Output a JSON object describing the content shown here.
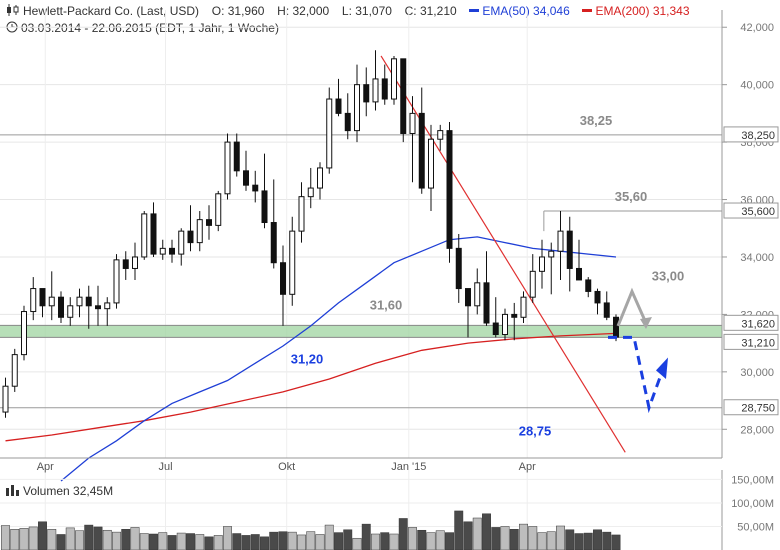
{
  "header": {
    "instrument": "Hewlett-Packard Co. (Last, USD)",
    "open": "O: 31,960",
    "high": "H: 32,000",
    "low": "L: 31,070",
    "close": "C: 31,210",
    "ema50_label": "EMA(50)",
    "ema50_value": "34,046",
    "ema200_label": "EMA(200)",
    "ema200_value": "31,343",
    "period": "03.03.2014 - 22.06.2015 (EDT, 1 Jahr, 1 Woche)"
  },
  "volume": {
    "label": "Volumen",
    "value": "32,45M"
  },
  "colors": {
    "ema50": "#1f3fd6",
    "ema200": "#d62020",
    "trend": "#e03030",
    "zone": "#9fd4a0",
    "forecast": "#1a3fe0",
    "arrow_gray": "#a6a6a6"
  },
  "chart_data": [
    {
      "type": "candlestick",
      "title": "Hewlett-Packard Co. (Last, USD)",
      "x_tick_labels": [
        "Apr",
        "Jul",
        "Okt",
        "Jan '15",
        "Apr"
      ],
      "y_tick_labels": [
        "42,000",
        "40,000",
        "38,000",
        "36,000",
        "34,000",
        "32,000",
        "30,000",
        "28,000"
      ],
      "ylim": [
        27.0,
        42.6
      ],
      "x_range_weeks": [
        0,
        67
      ],
      "x_tick_weeks": [
        4.3,
        17.3,
        30.4,
        43.6,
        56.4
      ],
      "candles": [
        [
          28.6,
          29.8,
          28.4,
          29.5
        ],
        [
          29.5,
          30.8,
          29.3,
          30.6
        ],
        [
          30.6,
          32.3,
          30.4,
          32.1
        ],
        [
          32.1,
          33.3,
          31.8,
          32.9
        ],
        [
          32.9,
          32.9,
          31.9,
          32.3
        ],
        [
          32.3,
          33.5,
          31.8,
          32.6
        ],
        [
          32.6,
          32.8,
          31.7,
          31.9
        ],
        [
          31.9,
          32.6,
          31.6,
          32.3
        ],
        [
          32.3,
          32.9,
          31.9,
          32.6
        ],
        [
          32.6,
          33.0,
          31.5,
          32.3
        ],
        [
          32.3,
          33.0,
          31.6,
          32.2
        ],
        [
          32.2,
          32.6,
          31.6,
          32.4
        ],
        [
          32.4,
          34.1,
          32.2,
          33.9
        ],
        [
          33.9,
          34.2,
          33.2,
          33.6
        ],
        [
          33.6,
          34.5,
          33.2,
          34.0
        ],
        [
          34.0,
          35.6,
          33.9,
          35.5
        ],
        [
          35.5,
          35.9,
          34.0,
          34.1
        ],
        [
          34.1,
          34.6,
          33.9,
          34.3
        ],
        [
          34.3,
          34.6,
          33.8,
          34.1
        ],
        [
          34.1,
          35.0,
          33.7,
          34.9
        ],
        [
          34.9,
          35.8,
          34.2,
          34.5
        ],
        [
          34.5,
          35.6,
          34.2,
          35.3
        ],
        [
          35.3,
          35.8,
          34.6,
          35.1
        ],
        [
          35.1,
          36.3,
          34.9,
          36.2
        ],
        [
          36.2,
          38.3,
          36.0,
          38.0
        ],
        [
          38.0,
          38.3,
          36.8,
          37.0
        ],
        [
          37.0,
          37.7,
          36.3,
          36.5
        ],
        [
          36.5,
          37.0,
          35.9,
          36.3
        ],
        [
          36.3,
          37.6,
          35.0,
          35.2
        ],
        [
          35.2,
          36.7,
          33.6,
          33.8
        ],
        [
          33.8,
          34.4,
          31.6,
          32.7
        ],
        [
          32.7,
          35.4,
          32.3,
          34.9
        ],
        [
          34.9,
          36.6,
          34.5,
          36.1
        ],
        [
          36.1,
          37.1,
          35.7,
          36.4
        ],
        [
          36.4,
          37.3,
          36.0,
          37.1
        ],
        [
          37.1,
          39.9,
          36.9,
          39.5
        ],
        [
          39.5,
          40.2,
          38.9,
          39.0
        ],
        [
          39.0,
          39.7,
          38.1,
          38.4
        ],
        [
          38.4,
          40.7,
          38.0,
          40.0
        ],
        [
          40.0,
          40.6,
          38.9,
          39.4
        ],
        [
          39.4,
          41.2,
          39.1,
          40.2
        ],
        [
          40.2,
          40.7,
          39.3,
          39.5
        ],
        [
          39.5,
          41.0,
          39.3,
          40.9
        ],
        [
          40.9,
          40.9,
          38.0,
          38.3
        ],
        [
          38.3,
          39.6,
          36.6,
          39.0
        ],
        [
          39.0,
          39.9,
          36.2,
          36.4
        ],
        [
          36.4,
          38.6,
          35.6,
          38.1
        ],
        [
          38.1,
          38.6,
          37.7,
          38.4
        ],
        [
          38.4,
          38.7,
          33.8,
          34.3
        ],
        [
          34.3,
          34.8,
          32.4,
          32.9
        ],
        [
          32.9,
          32.9,
          31.2,
          32.3
        ],
        [
          32.3,
          33.6,
          32.0,
          33.1
        ],
        [
          33.1,
          34.2,
          31.6,
          31.7
        ],
        [
          31.7,
          32.6,
          31.2,
          31.3
        ],
        [
          31.3,
          32.2,
          31.1,
          32.0
        ],
        [
          32.0,
          32.4,
          31.1,
          31.9
        ],
        [
          31.9,
          32.8,
          31.7,
          32.6
        ],
        [
          32.6,
          34.1,
          32.4,
          33.5
        ],
        [
          33.5,
          34.6,
          32.9,
          34.0
        ],
        [
          34.0,
          34.5,
          32.7,
          34.2
        ],
        [
          34.2,
          35.6,
          33.2,
          34.9
        ],
        [
          34.9,
          35.4,
          32.8,
          33.6
        ],
        [
          33.6,
          34.6,
          33.2,
          33.2
        ],
        [
          33.2,
          33.3,
          32.6,
          32.8
        ],
        [
          32.8,
          32.9,
          32.0,
          32.4
        ],
        [
          32.4,
          32.8,
          31.8,
          31.9
        ],
        [
          31.9,
          32.0,
          31.07,
          31.21
        ]
      ],
      "volume_millions": [
        52,
        44,
        46,
        49,
        60,
        44,
        33,
        47,
        41,
        53,
        49,
        42,
        38,
        44,
        48,
        35,
        34,
        37,
        31,
        36,
        35,
        33,
        28,
        31,
        50,
        35,
        31,
        33,
        28,
        38,
        39,
        38,
        32,
        39,
        33,
        53,
        37,
        43,
        25,
        55,
        34,
        37,
        34,
        67,
        48,
        42,
        37,
        41,
        37,
        83,
        60,
        68,
        77,
        48,
        50,
        44,
        55,
        50,
        37,
        39,
        51,
        43,
        35,
        36,
        43,
        38,
        32
      ],
      "volume_tick_labels": [
        "150,00M",
        "100,00M",
        "50,00M"
      ],
      "volume_ylim": [
        0,
        170
      ],
      "ema50_points": [
        [
          6,
          26.2
        ],
        [
          9,
          27.0
        ],
        [
          12,
          27.6
        ],
        [
          15,
          28.3
        ],
        [
          18,
          28.9
        ],
        [
          21,
          29.3
        ],
        [
          24,
          29.7
        ],
        [
          27,
          30.3
        ],
        [
          30,
          30.9
        ],
        [
          33,
          31.6
        ],
        [
          36,
          32.4
        ],
        [
          39,
          33.1
        ],
        [
          42,
          33.8
        ],
        [
          45,
          34.2
        ],
        [
          48,
          34.6
        ],
        [
          51,
          34.7
        ],
        [
          54,
          34.5
        ],
        [
          57,
          34.3
        ],
        [
          60,
          34.2
        ],
        [
          63,
          34.1
        ],
        [
          66,
          34.0
        ]
      ],
      "ema200_points": [
        [
          0,
          27.6
        ],
        [
          5,
          27.8
        ],
        [
          10,
          28.05
        ],
        [
          15,
          28.3
        ],
        [
          20,
          28.6
        ],
        [
          25,
          28.95
        ],
        [
          30,
          29.3
        ],
        [
          35,
          29.75
        ],
        [
          40,
          30.3
        ],
        [
          45,
          30.75
        ],
        [
          50,
          31.0
        ],
        [
          55,
          31.15
        ],
        [
          60,
          31.25
        ],
        [
          66,
          31.34
        ]
      ],
      "trendline": [
        [
          40.6,
          41.0
        ],
        [
          67,
          27.2
        ]
      ],
      "support_zone": [
        31.2,
        31.62
      ],
      "horizontal_levels": [
        {
          "y": 38.25,
          "label": "38,25",
          "axis_label": "38,250"
        },
        {
          "y": 35.6,
          "label": "35,60",
          "axis_label": "35,600"
        },
        {
          "y": 28.75,
          "label": "28,75",
          "axis_label": "28,750"
        }
      ],
      "zone_axis_labels": [
        "31,620",
        "31,210"
      ],
      "annotations": {
        "level_3160": "31,60",
        "level_3120": "31,20",
        "level_3300": "33,00"
      }
    }
  ]
}
